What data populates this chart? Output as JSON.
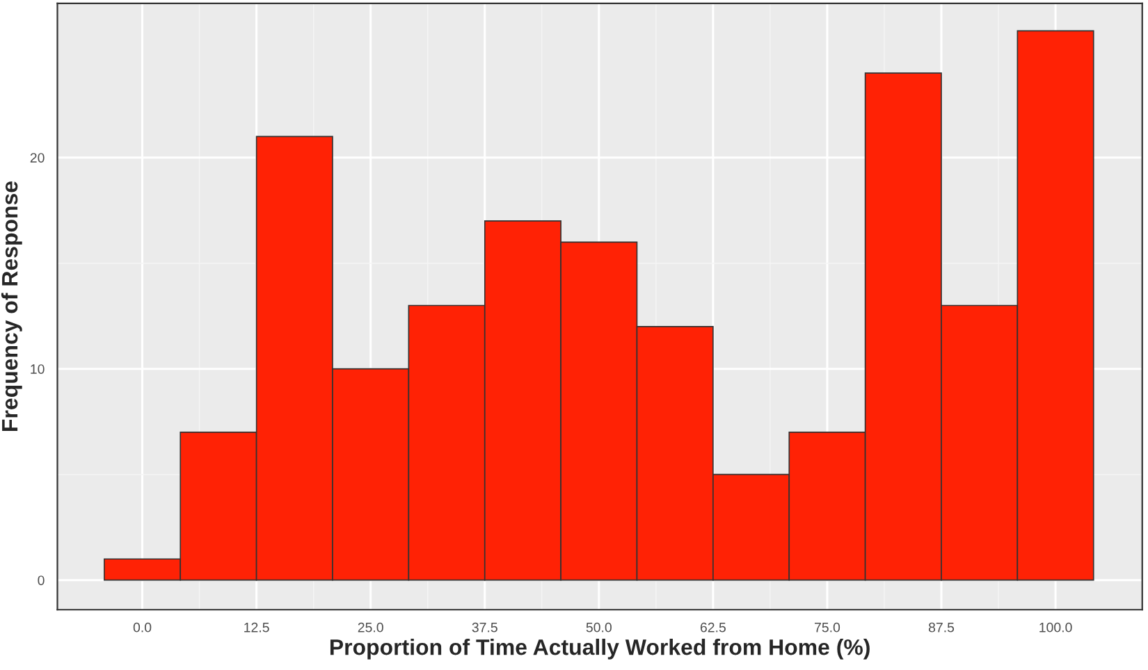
{
  "chart_data": {
    "type": "histogram",
    "xlabel": "Proportion of Time Actually Worked from Home (%)",
    "ylabel": "Frequency of Response",
    "bins": [
      -4.1667,
      4.1667,
      12.5,
      20.8333,
      29.1667,
      37.5,
      45.8333,
      54.1667,
      62.5,
      70.8333,
      79.1667,
      87.5,
      95.8333,
      104.1667
    ],
    "values": [
      1,
      7,
      21,
      10,
      13,
      17,
      16,
      12,
      5,
      7,
      24,
      13,
      26
    ],
    "color": "#ff2205",
    "xlim": [
      -9.3,
      109.5
    ],
    "xticks": [
      {
        "value": 0,
        "label": "0.0"
      },
      12.5,
      {
        "value": 25,
        "label": "25.0"
      },
      37.5,
      {
        "value": 50,
        "label": "50.0"
      },
      62.5,
      {
        "value": 75,
        "label": "75.0"
      },
      87.5,
      {
        "value": 100,
        "label": "100.0"
      }
    ],
    "ylim": [
      -1.4,
      27.3
    ],
    "yticks": [
      0,
      10,
      20
    ],
    "grid": true
  }
}
